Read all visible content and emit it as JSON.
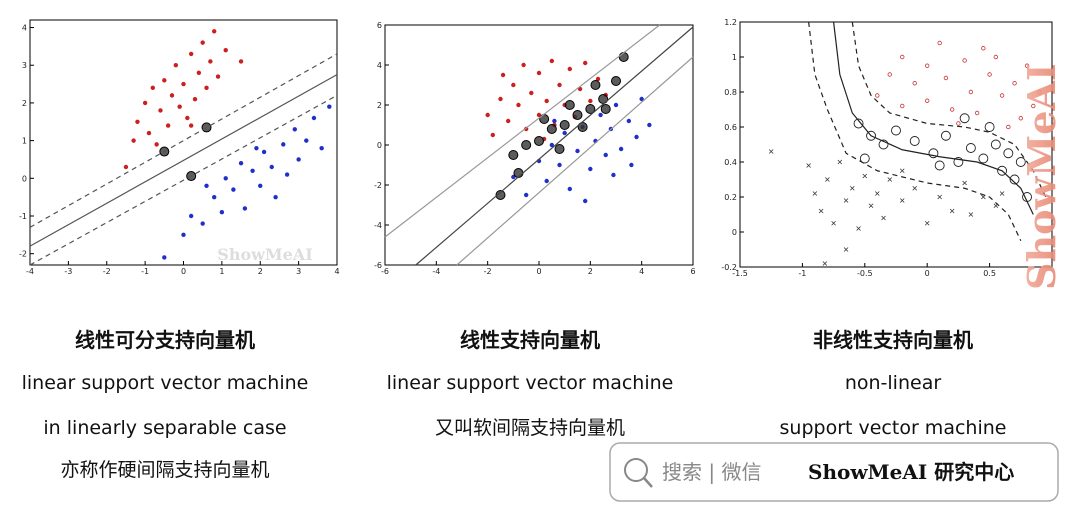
{
  "chart_data": [
    {
      "type": "scatter",
      "xlim": [
        -4,
        4
      ],
      "ylim": [
        -2.3,
        4.2
      ],
      "xticks": [
        -4,
        -3,
        -2,
        -1,
        0,
        1,
        2,
        3,
        4
      ],
      "yticks": [
        -2,
        -1,
        0,
        1,
        2,
        3,
        4
      ],
      "series": [
        {
          "kind": "points",
          "marker": "dot",
          "color": "#cc1f1f",
          "x": [
            -1.5,
            -1.3,
            -1.2,
            -1.0,
            -0.9,
            -0.8,
            -0.6,
            -0.5,
            -0.4,
            -0.3,
            -0.2,
            -0.1,
            0,
            0.1,
            0.2,
            0.3,
            0.4,
            0.5,
            0.6,
            0.7,
            0.8,
            0.9,
            1.1,
            -0.7,
            0.2,
            1.5
          ],
          "values": [
            0.3,
            1.0,
            1.5,
            2.0,
            1.2,
            2.4,
            1.8,
            2.6,
            1.4,
            2.2,
            3.0,
            1.9,
            2.5,
            1.6,
            3.3,
            2.1,
            2.8,
            3.6,
            2.4,
            3.1,
            3.9,
            2.7,
            3.4,
            0.9,
            1.4,
            3.1
          ]
        },
        {
          "kind": "points",
          "marker": "dot",
          "color": "#1f2fcc",
          "x": [
            -0.5,
            0,
            0.2,
            0.5,
            0.8,
            1.0,
            1.1,
            1.3,
            1.5,
            1.6,
            1.8,
            2.0,
            2.1,
            2.3,
            2.4,
            2.6,
            2.7,
            2.9,
            3.0,
            3.2,
            3.4,
            3.6,
            3.8,
            1.9,
            0.6
          ],
          "values": [
            -2.1,
            -1.5,
            -1.0,
            -1.2,
            -0.5,
            -0.9,
            0.0,
            -0.3,
            0.4,
            -0.8,
            0.2,
            -0.2,
            0.7,
            0.3,
            -0.5,
            0.9,
            0.1,
            1.3,
            0.5,
            1.0,
            1.6,
            0.8,
            1.9,
            0.8,
            -0.2
          ]
        },
        {
          "kind": "points",
          "marker": "sv",
          "color": "#333333",
          "x": [
            -0.5,
            0.6,
            0.2
          ],
          "values": [
            0.71,
            1.35,
            0.06
          ]
        },
        {
          "kind": "line",
          "dash": false,
          "color": "#555555",
          "x": [
            -4,
            4
          ],
          "values": [
            -1.8,
            2.75
          ]
        },
        {
          "kind": "line",
          "dash": true,
          "color": "#555555",
          "x": [
            -4,
            4
          ],
          "values": [
            -1.3,
            3.3
          ]
        },
        {
          "kind": "line",
          "dash": true,
          "color": "#555555",
          "x": [
            -4,
            4
          ],
          "values": [
            -2.3,
            2.2
          ]
        }
      ]
    },
    {
      "type": "scatter",
      "xlim": [
        -6,
        6
      ],
      "ylim": [
        -6,
        6
      ],
      "xticks": [
        -6,
        -4,
        -2,
        0,
        2,
        4,
        6
      ],
      "yticks": [
        -6,
        -4,
        -2,
        0,
        2,
        4,
        6
      ],
      "series": [
        {
          "kind": "points",
          "marker": "dot",
          "color": "#cc1f1f",
          "x": [
            -2,
            -1.8,
            -1.5,
            -1.2,
            -1,
            -0.8,
            -0.5,
            -0.3,
            0,
            0,
            0.3,
            0.5,
            0.6,
            0.8,
            1,
            1.2,
            1.4,
            1.6,
            1.8,
            2,
            2.3,
            -1.4,
            -0.6,
            0.2,
            2.6
          ],
          "values": [
            1.5,
            0.5,
            2.3,
            1.2,
            3,
            2,
            0.8,
            2.6,
            1.5,
            3.6,
            2.2,
            4.2,
            1.0,
            3,
            2,
            3.8,
            1.4,
            2.8,
            4.1,
            2.2,
            3.3,
            3.5,
            4,
            0.3,
            2.5
          ]
        },
        {
          "kind": "points",
          "marker": "dot",
          "color": "#1f2fcc",
          "x": [
            -1,
            -0.5,
            0,
            0.3,
            0.5,
            0.8,
            1,
            1.2,
            1.5,
            1.7,
            2,
            2.2,
            2.4,
            2.6,
            2.8,
            3,
            3.2,
            3.5,
            3.8,
            4,
            4.3,
            1.8,
            2.9,
            0.6,
            3.6
          ],
          "values": [
            -1.6,
            -2.5,
            -0.8,
            -1.8,
            0,
            -1,
            0.6,
            -2.2,
            -0.3,
            0.9,
            -1.2,
            0.2,
            1.5,
            -0.5,
            0.8,
            2,
            -0.2,
            1.2,
            0.4,
            2.3,
            1,
            -2.8,
            -1.5,
            1.2,
            -1
          ]
        },
        {
          "kind": "points",
          "marker": "sv",
          "color": "#333333",
          "x": [
            -1.5,
            -1,
            -0.5,
            0,
            0.5,
            1,
            1.5,
            2,
            2.5,
            3,
            3.3,
            0.8,
            1.7,
            2.6,
            1.2,
            0.2,
            -0.8,
            2.2
          ],
          "values": [
            -2.5,
            -0.5,
            0,
            0.2,
            0.8,
            1,
            1.5,
            1.8,
            2.3,
            3.2,
            4.4,
            -0.2,
            0.9,
            1.8,
            2.0,
            1.3,
            -1.4,
            3.0
          ]
        },
        {
          "kind": "line",
          "dash": false,
          "color": "#444444",
          "x": [
            -4.8,
            6
          ],
          "values": [
            -6,
            5.9
          ]
        },
        {
          "kind": "line",
          "dash": false,
          "color": "#999999",
          "x": [
            -6,
            4.7
          ],
          "values": [
            -4.6,
            6
          ]
        },
        {
          "kind": "line",
          "dash": false,
          "color": "#999999",
          "x": [
            -3.2,
            6
          ],
          "values": [
            -6,
            4.4
          ]
        }
      ]
    },
    {
      "type": "scatter",
      "xlim": [
        -1.5,
        1.0
      ],
      "ylim": [
        -0.2,
        1.2
      ],
      "xticks": [
        -1.5,
        -1,
        -0.5,
        0,
        0.5
      ],
      "yticks": [
        -0.2,
        0,
        0.2,
        0.4,
        0.6,
        0.8,
        1,
        1.2
      ],
      "series": [
        {
          "kind": "points",
          "marker": "ring",
          "color": "#cc3333",
          "x": [
            -0.4,
            -0.3,
            -0.2,
            -0.1,
            0,
            0,
            0.1,
            0.15,
            0.2,
            0.3,
            0.35,
            0.4,
            0.5,
            0.55,
            0.6,
            0.7,
            0.75,
            0.8,
            0.85,
            -0.2,
            0.25,
            0.45,
            0.65,
            0.9
          ],
          "values": [
            0.78,
            0.9,
            1.0,
            0.85,
            0.95,
            0.75,
            1.08,
            0.88,
            0.7,
            0.98,
            0.8,
            0.68,
            0.9,
            1.0,
            0.78,
            0.85,
            0.65,
            0.95,
            0.72,
            0.72,
            0.62,
            1.05,
            0.6,
            0.8
          ]
        },
        {
          "kind": "points",
          "marker": "x",
          "color": "#333333",
          "x": [
            -1.25,
            -0.95,
            -0.9,
            -0.85,
            -0.8,
            -0.75,
            -0.7,
            -0.65,
            -0.6,
            -0.55,
            -0.5,
            -0.45,
            -0.4,
            -0.35,
            -0.3,
            -0.2,
            -0.1,
            0,
            0.1,
            0.2,
            0.3,
            0.35,
            0.45,
            0.55,
            -0.82,
            -0.65,
            -0.2,
            0.6
          ],
          "values": [
            0.46,
            0.38,
            0.22,
            0.12,
            0.3,
            0.05,
            0.4,
            0.18,
            0.25,
            0.02,
            0.32,
            0.15,
            0.22,
            0.08,
            0.3,
            0.18,
            0.25,
            0.05,
            0.2,
            0.12,
            0.28,
            0.1,
            0.2,
            0.15,
            -0.18,
            -0.1,
            0.35,
            0.22
          ]
        },
        {
          "kind": "points",
          "marker": "svring",
          "color": "#222222",
          "x": [
            -0.55,
            -0.45,
            -0.35,
            -0.25,
            -0.1,
            0.05,
            0.15,
            0.25,
            0.35,
            0.45,
            0.55,
            0.6,
            0.65,
            0.7,
            0.75,
            0.5,
            0.3,
            -0.5,
            0.1,
            0.8
          ],
          "values": [
            0.62,
            0.55,
            0.5,
            0.58,
            0.52,
            0.45,
            0.55,
            0.4,
            0.48,
            0.42,
            0.5,
            0.35,
            0.45,
            0.3,
            0.4,
            0.6,
            0.65,
            0.42,
            0.38,
            0.2
          ]
        },
        {
          "kind": "line",
          "dash": false,
          "color": "#222222",
          "x": [
            -0.75,
            -0.7,
            -0.6,
            -0.45,
            -0.2,
            0.1,
            0.4,
            0.6,
            0.75,
            0.85
          ],
          "values": [
            1.2,
            0.9,
            0.68,
            0.55,
            0.47,
            0.43,
            0.4,
            0.35,
            0.25,
            0.1
          ]
        },
        {
          "kind": "line",
          "dash": true,
          "color": "#222222",
          "x": [
            -0.6,
            -0.55,
            -0.45,
            -0.3,
            0,
            0.3,
            0.5,
            0.7,
            0.85,
            0.95
          ],
          "values": [
            1.2,
            0.95,
            0.78,
            0.68,
            0.62,
            0.6,
            0.57,
            0.5,
            0.35,
            0.2
          ]
        },
        {
          "kind": "line",
          "dash": true,
          "color": "#222222",
          "x": [
            -0.95,
            -0.9,
            -0.8,
            -0.65,
            -0.4,
            0,
            0.3,
            0.5,
            0.65,
            0.75
          ],
          "values": [
            1.2,
            0.9,
            0.7,
            0.45,
            0.35,
            0.28,
            0.25,
            0.2,
            0.1,
            -0.05
          ]
        }
      ]
    }
  ],
  "captions": [
    {
      "title": "线性可分支持向量机",
      "lines": [
        "linear support vector machine",
        "in linearly separable case",
        "亦称作硬间隔支持向量机"
      ]
    },
    {
      "title": "线性支持向量机",
      "lines": [
        "linear support vector machine",
        "又叫软间隔支持向量机"
      ]
    },
    {
      "title": "非线性支持向量机",
      "lines": [
        "non-linear",
        "support vector machine"
      ]
    }
  ],
  "watermark": "ShowMeAI",
  "badge": {
    "search": "搜索 | 微信",
    "brand": "ShowMeAI 研究中心"
  }
}
